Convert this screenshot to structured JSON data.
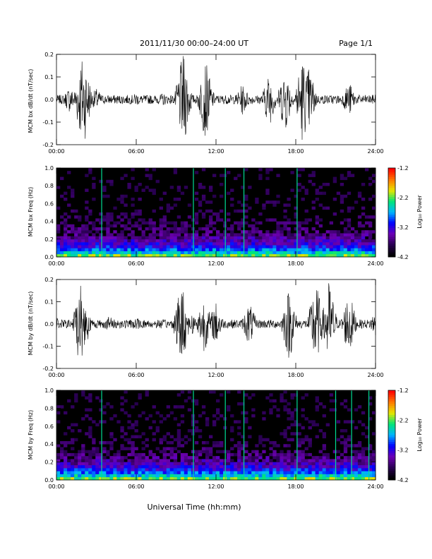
{
  "header": {
    "title": "2011/11/30  00:00–24:00 UT",
    "page": "Page 1/1"
  },
  "footer": {
    "xlabel": "Universal Time (hh:mm)"
  },
  "chart_data": [
    {
      "type": "line",
      "ylabel": "MCM bx dB/dt (nT/sec)",
      "xlim": [
        0,
        24
      ],
      "ylim": [
        -0.2,
        0.2
      ],
      "x_ticks": [
        "00:00",
        "06:00",
        "12:00",
        "18:00",
        "24:00"
      ],
      "y_ticks": [
        "-0.2",
        "-0.1",
        "0.0",
        "0.1",
        "0.2"
      ],
      "series": [
        {
          "values": [
            {
              "x": 0.0,
              "y": 0.02
            },
            {
              "x": 1.0,
              "y": 0.06
            },
            {
              "x": 1.9,
              "y": 0.2
            },
            {
              "x": 2.1,
              "y": -0.19
            },
            {
              "x": 3.0,
              "y": 0.05
            },
            {
              "x": 6.0,
              "y": 0.03
            },
            {
              "x": 8.0,
              "y": 0.03
            },
            {
              "x": 9.5,
              "y": 0.2
            },
            {
              "x": 9.6,
              "y": -0.2
            },
            {
              "x": 11.2,
              "y": 0.18
            },
            {
              "x": 11.4,
              "y": -0.08
            },
            {
              "x": 14.0,
              "y": 0.07
            },
            {
              "x": 16.0,
              "y": 0.12
            },
            {
              "x": 17.2,
              "y": 0.15
            },
            {
              "x": 18.5,
              "y": -0.2
            },
            {
              "x": 19.0,
              "y": 0.15
            },
            {
              "x": 22.0,
              "y": 0.08
            },
            {
              "x": 24.0,
              "y": 0.03
            }
          ]
        }
      ]
    },
    {
      "type": "heatmap",
      "ylabel": "MCM bx Freq (Hz)",
      "xlim": [
        0,
        24
      ],
      "ylim": [
        0.0,
        1.0
      ],
      "x_ticks": [
        "00:00",
        "06:00",
        "12:00",
        "18:00",
        "24:00"
      ],
      "y_ticks": [
        "0.0",
        "0.2",
        "0.4",
        "0.6",
        "0.8",
        "1.0"
      ],
      "colorbar": {
        "label": "Log₁₀ Power",
        "range": [
          -4.2,
          -1.2
        ],
        "ticks": [
          "-1.2",
          "-2.2",
          "-3.2",
          "-4.2"
        ]
      },
      "broadband_spikes_hours": [
        3.4,
        10.3,
        12.7,
        14.1,
        18.1
      ]
    },
    {
      "type": "line",
      "ylabel": "MCM by dB/dt (nT/sec)",
      "xlim": [
        0,
        24
      ],
      "ylim": [
        -0.2,
        0.2
      ],
      "x_ticks": [
        "00:00",
        "06:00",
        "12:00",
        "18:00",
        "24:00"
      ],
      "y_ticks": [
        "-0.2",
        "-0.1",
        "0.0",
        "0.1",
        "0.2"
      ],
      "series": [
        {
          "values": [
            {
              "x": 0.0,
              "y": 0.03
            },
            {
              "x": 1.8,
              "y": 0.2
            },
            {
              "x": 2.0,
              "y": -0.15
            },
            {
              "x": 4.0,
              "y": 0.04
            },
            {
              "x": 6.0,
              "y": 0.03
            },
            {
              "x": 9.4,
              "y": -0.2
            },
            {
              "x": 10.2,
              "y": 0.05
            },
            {
              "x": 11.1,
              "y": 0.13
            },
            {
              "x": 12.0,
              "y": -0.1
            },
            {
              "x": 14.5,
              "y": 0.1
            },
            {
              "x": 17.5,
              "y": 0.17
            },
            {
              "x": 19.5,
              "y": 0.2
            },
            {
              "x": 20.5,
              "y": -0.2
            },
            {
              "x": 22.0,
              "y": 0.15
            },
            {
              "x": 24.0,
              "y": 0.06
            }
          ]
        }
      ]
    },
    {
      "type": "heatmap",
      "ylabel": "MCM by Freq (Hz)",
      "xlim": [
        0,
        24
      ],
      "ylim": [
        0.0,
        1.0
      ],
      "x_ticks": [
        "00:00",
        "06:00",
        "12:00",
        "18:00",
        "24:00"
      ],
      "y_ticks": [
        "0.0",
        "0.2",
        "0.4",
        "0.6",
        "0.8",
        "1.0"
      ],
      "colorbar": {
        "label": "Log₁₀ Power",
        "range": [
          -4.2,
          -1.2
        ],
        "ticks": [
          "-1.2",
          "-2.2",
          "-3.2",
          "-4.2"
        ]
      },
      "broadband_spikes_hours": [
        3.4,
        10.3,
        12.7,
        14.1,
        18.1,
        21.0,
        22.2,
        23.5
      ]
    }
  ]
}
